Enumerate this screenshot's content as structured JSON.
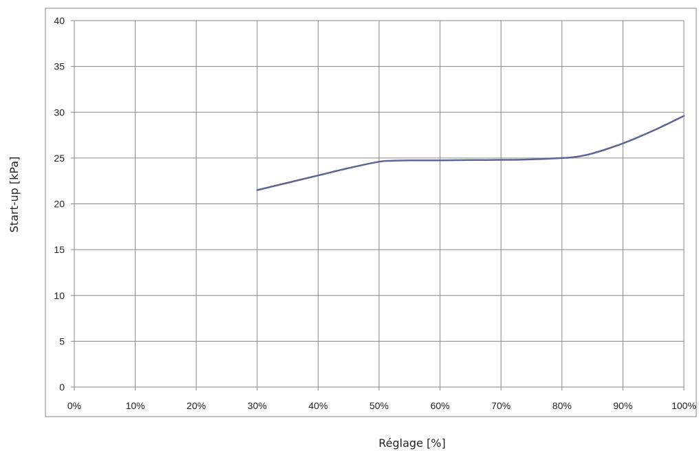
{
  "chart_data": {
    "type": "line",
    "xlabel": "Réglage [%]",
    "ylabel": "Start-up [kPa]",
    "xlim": [
      0,
      100
    ],
    "ylim": [
      0,
      40
    ],
    "x_ticks": [
      0,
      10,
      20,
      30,
      40,
      50,
      60,
      70,
      80,
      90,
      100
    ],
    "x_tick_labels": [
      "0%",
      "10%",
      "20%",
      "30%",
      "40%",
      "50%",
      "60%",
      "70%",
      "80%",
      "90%",
      "100%"
    ],
    "y_ticks": [
      0,
      5,
      10,
      15,
      20,
      25,
      30,
      35,
      40
    ],
    "y_tick_labels": [
      "0",
      "5",
      "10",
      "15",
      "20",
      "25",
      "30",
      "35",
      "40"
    ],
    "grid": true,
    "legend": "none",
    "series": [
      {
        "color": "#5b6496",
        "x": [
          30,
          35,
          40,
          45,
          50,
          52,
          55,
          60,
          65,
          70,
          75,
          80,
          82,
          85,
          90,
          95,
          100
        ],
        "y": [
          21.5,
          22.3,
          23.1,
          23.9,
          24.6,
          24.7,
          24.75,
          24.75,
          24.78,
          24.8,
          24.85,
          25.0,
          25.1,
          25.5,
          26.6,
          28.0,
          29.6
        ]
      }
    ]
  }
}
